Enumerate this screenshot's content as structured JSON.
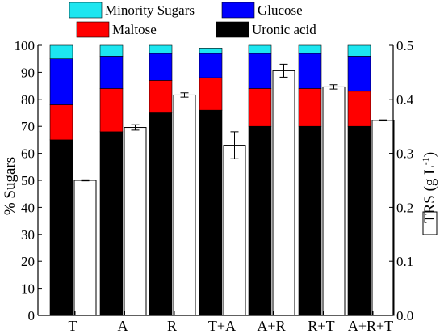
{
  "chart_data": {
    "type": "bar",
    "categories": [
      "T",
      "A",
      "R",
      "T+A",
      "A+R",
      "R+T",
      "A+R+T"
    ],
    "stack_series": [
      {
        "name": "Uronic acid",
        "color": "#000000",
        "values": [
          65,
          68,
          75,
          76,
          70,
          70,
          70
        ]
      },
      {
        "name": "Maltose",
        "color": "#ff0000",
        "values": [
          13,
          16,
          12,
          12,
          14,
          14,
          13
        ]
      },
      {
        "name": "Glucose",
        "color": "#0000ff",
        "values": [
          17,
          12,
          10,
          9,
          13,
          13,
          13
        ]
      },
      {
        "name": "Minority Sugars",
        "color": "#1de6f0",
        "values": [
          5,
          4,
          3,
          2,
          3,
          3,
          4
        ]
      }
    ],
    "trs_series": {
      "name": "TRS (g L⁻¹)",
      "color": "#ffffff",
      "values": [
        0.25,
        0.348,
        0.408,
        0.315,
        0.453,
        0.423,
        0.361
      ],
      "errors": [
        0.001,
        0.005,
        0.004,
        0.025,
        0.012,
        0.004,
        0.001
      ]
    },
    "ylabel_left": "% Sugars",
    "ylabel_right_main": "TRS (g L",
    "ylabel_right_sup": "-1",
    "ylabel_right_close": ")",
    "ylim_left": [
      0,
      100
    ],
    "yticks_left": [
      "0",
      "10",
      "20",
      "30",
      "40",
      "50",
      "60",
      "70",
      "80",
      "90",
      "100"
    ],
    "ylim_right": [
      0,
      0.5
    ],
    "yticks_right": [
      "0.0",
      "0.1",
      "0.2",
      "0.3",
      "0.4",
      "0.5"
    ],
    "legend": {
      "placement": "top",
      "items": [
        {
          "label": "Minority Sugars",
          "color": "#1de6f0"
        },
        {
          "label": "Glucose",
          "color": "#0000ff"
        },
        {
          "label": "Maltose",
          "color": "#ff0000"
        },
        {
          "label": "Uronic acid",
          "color": "#000000"
        }
      ]
    },
    "grid": false
  }
}
